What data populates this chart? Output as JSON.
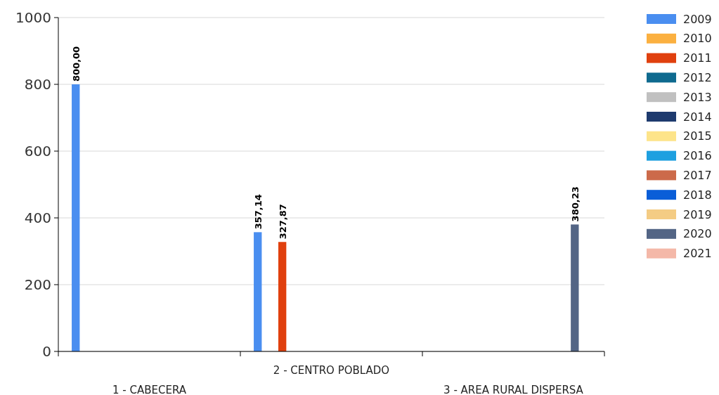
{
  "chart_data": {
    "type": "bar",
    "categories": [
      "1 - CABECERA",
      "2 - CENTRO POBLADO",
      "3 - AREA RURAL DISPERSA"
    ],
    "series": [
      {
        "name": "2009",
        "color": "#4a8ef0",
        "values": [
          800,
          357.14,
          null
        ],
        "value_labels": [
          "800,00",
          "357,14",
          null
        ]
      },
      {
        "name": "2010",
        "color": "#fbb040",
        "values": [
          null,
          null,
          null
        ]
      },
      {
        "name": "2011",
        "color": "#e0400e",
        "values": [
          null,
          327.87,
          null
        ],
        "value_labels": [
          null,
          "327,87",
          null
        ]
      },
      {
        "name": "2012",
        "color": "#0f6a8f",
        "values": [
          null,
          null,
          null
        ]
      },
      {
        "name": "2013",
        "color": "#c0c0c0",
        "values": [
          null,
          null,
          null
        ]
      },
      {
        "name": "2014",
        "color": "#1e3a6e",
        "values": [
          null,
          null,
          null
        ]
      },
      {
        "name": "2015",
        "color": "#fde48a",
        "values": [
          null,
          null,
          null
        ]
      },
      {
        "name": "2016",
        "color": "#1ea0e0",
        "values": [
          null,
          null,
          null
        ]
      },
      {
        "name": "2017",
        "color": "#cc6a4a",
        "values": [
          null,
          null,
          null
        ]
      },
      {
        "name": "2018",
        "color": "#0a5ed8",
        "values": [
          null,
          null,
          null
        ]
      },
      {
        "name": "2019",
        "color": "#f4cc84",
        "values": [
          null,
          null,
          null
        ]
      },
      {
        "name": "2020",
        "color": "#536585",
        "values": [
          null,
          null,
          380.23
        ],
        "value_labels": [
          null,
          null,
          "380,23"
        ]
      },
      {
        "name": "2021",
        "color": "#f4b8a8",
        "values": [
          null,
          null,
          null
        ]
      }
    ],
    "ylim": [
      0,
      1000
    ],
    "yticks": [
      0,
      200,
      400,
      600,
      800,
      1000
    ],
    "grid": "y",
    "legend": "right"
  }
}
